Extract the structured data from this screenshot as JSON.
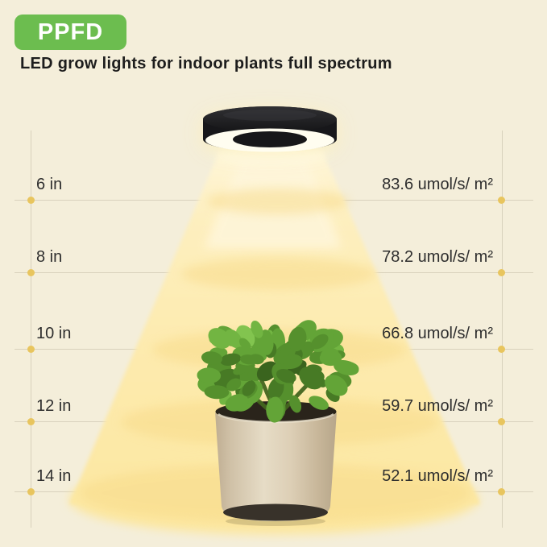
{
  "badge": {
    "label": "PPFD"
  },
  "title": "LED grow lights for indoor plants full spectrum",
  "measurements": [
    {
      "distance": "6 in",
      "ppfd": "83.6 umol/s/ m²"
    },
    {
      "distance": "8 in",
      "ppfd": "78.2 umol/s/ m²"
    },
    {
      "distance": "10 in",
      "ppfd": "66.8 umol/s/ m²"
    },
    {
      "distance": "12 in",
      "ppfd": "59.7 umol/s/ m²"
    },
    {
      "distance": "14 in",
      "ppfd": "52.1 umol/s/ m²"
    }
  ],
  "chart_data": {
    "type": "table",
    "title": "PPFD",
    "subtitle": "LED grow lights for indoor plants full spectrum",
    "categories": [
      "6 in",
      "8 in",
      "10 in",
      "12 in",
      "14 in"
    ],
    "values": [
      83.6,
      78.2,
      66.8,
      59.7,
      52.1
    ],
    "ylabel": "umol/s/m²"
  },
  "icons": {
    "lamp": "led-ring-grow-light",
    "plant": "potted-jade-plant"
  },
  "colors": {
    "background": "#f4eeda",
    "badge_green": "#6cbd4f",
    "light_yellow": "#fdeaad",
    "light_pool": "#f8da88",
    "dot_gold": "#e8c55e",
    "guide_line": "#d8d1bc",
    "text": "#2e2e2e",
    "lamp_black": "#17171a",
    "pot_beige": "#d9cbb2"
  }
}
